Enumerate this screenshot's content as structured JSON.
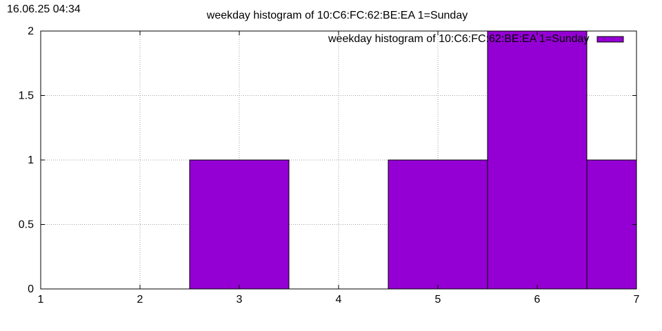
{
  "timestamp": "16.06.25 04:34",
  "chart_data": {
    "type": "bar",
    "title": "weekday histogram of 10:C6:FC:62:BE:EA 1=Sunday",
    "xlabel": "",
    "ylabel": "",
    "xlim": [
      1,
      7
    ],
    "ylim": [
      0,
      2
    ],
    "x_ticks": [
      "1",
      "2",
      "3",
      "4",
      "5",
      "6",
      "7"
    ],
    "y_ticks": [
      "0",
      "0.5",
      "1",
      "1.5",
      "2"
    ],
    "grid": true,
    "legend_position": "top-right",
    "bar_color": "#9400d3",
    "series": [
      {
        "name": "weekday histogram of 10:C6:FC:62:BE:EA 1=Sunday",
        "x": [
          3,
          5,
          6,
          7
        ],
        "values": [
          1,
          1,
          2,
          1
        ]
      }
    ]
  }
}
